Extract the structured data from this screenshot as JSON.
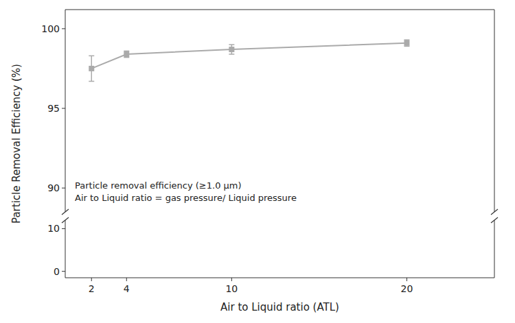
{
  "chart_data": [
    {
      "type": "line",
      "ylabel": "Particle Removal Efficiency (%)",
      "annotations": [
        "Particle removal efficiency (≥1.0 μm)",
        "Air to Liquid ratio = gas pressure/ Liquid pressure"
      ],
      "x": [
        2,
        4,
        10,
        20
      ],
      "series": [
        {
          "values": [
            97.5,
            98.4,
            98.7,
            99.1
          ],
          "errors": [
            0.8,
            0.2,
            0.3,
            0.2
          ],
          "color": "#aaaaaa",
          "marker": "square"
        }
      ],
      "xlim": [
        0.5,
        25
      ],
      "ylim": [
        88.5,
        101.2
      ],
      "yticks": [
        90,
        95,
        100
      ],
      "tick_labels": "y"
    },
    {
      "type": "line",
      "xlabel": "Air to Liquid ratio (ATL)",
      "xlim": [
        0.5,
        25
      ],
      "xticks": [
        2,
        4,
        10,
        20
      ],
      "ylim": [
        -1.5,
        12
      ],
      "yticks": [
        0,
        10
      ]
    }
  ]
}
